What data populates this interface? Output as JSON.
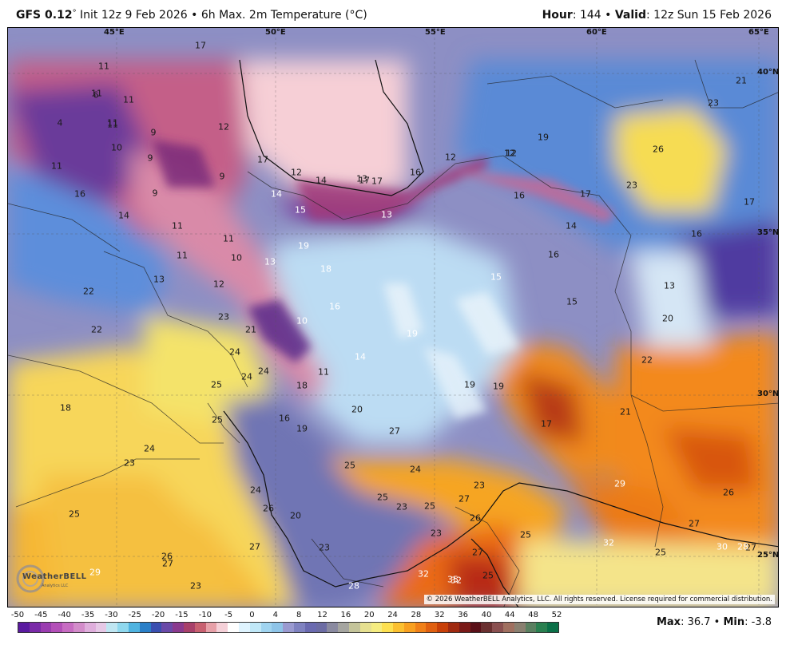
{
  "header": {
    "model": "GFS 0.12",
    "deg": "°",
    "init": " Init 12z 9 Feb 2026 • 6h Max. 2m Temperature (°C)",
    "hour_label": "Hour",
    "hour_value": ": 144 • ",
    "valid_label": "Valid",
    "valid_value": ": 12z Sun 15 Feb 2026"
  },
  "coords": {
    "lon": [
      "45°E",
      "50°E",
      "55°E",
      "60°E",
      "65°E"
    ],
    "lat": [
      "40°N",
      "35°N",
      "30°N",
      "25°N"
    ]
  },
  "labels": [
    "17",
    "11",
    "11",
    "11",
    "6",
    "11",
    "4",
    "11",
    "9",
    "10",
    "9",
    "12",
    "11",
    "17",
    "16",
    "9",
    "14",
    "9",
    "14",
    "17",
    "12",
    "14",
    "13",
    "17",
    "16",
    "12",
    "12",
    "19",
    "23",
    "26",
    "21",
    "23",
    "16",
    "17",
    "15",
    "13",
    "14",
    "11",
    "11",
    "13",
    "10",
    "12",
    "11",
    "19",
    "18",
    "16",
    "13",
    "16",
    "19",
    "15",
    "15",
    "16",
    "13",
    "17",
    "35°N",
    "20",
    "12",
    "22",
    "22",
    "23",
    "21",
    "10",
    "24",
    "24",
    "24",
    "14",
    "25",
    "11",
    "18",
    "19",
    "19",
    "18",
    "22",
    "25",
    "16",
    "19",
    "20",
    "17",
    "27",
    "21",
    "23",
    "25",
    "24",
    "24",
    "24",
    "23",
    "25",
    "26",
    "29",
    "26",
    "25",
    "20",
    "23",
    "23",
    "25",
    "27",
    "27",
    "23",
    "25",
    "26",
    "25",
    "27",
    "30",
    "27",
    "27",
    "26",
    "29",
    "32",
    "27",
    "32",
    "35",
    "25",
    "28",
    "23",
    "28",
    "32"
  ],
  "copyright": "© 2026 WeatherBELL Analytics, LLC. All rights reserved. License required for commercial distribution.",
  "logo": {
    "name": "WeatherBELL",
    "sub": "Analytics LLC"
  },
  "legend": {
    "ticks": [
      "-50",
      "-45",
      "-40",
      "-35",
      "-30",
      "-25",
      "-20",
      "-15",
      "-10",
      "-5",
      "0",
      "4",
      "8",
      "12",
      "16",
      "20",
      "24",
      "28",
      "32",
      "36",
      "40",
      "44",
      "48",
      "52"
    ],
    "colors": [
      "#5a1aa0",
      "#7a2aa8",
      "#9a3cb0",
      "#b34fb8",
      "#c76cc2",
      "#d38cca",
      "#dfaedc",
      "#e6c8e6",
      "#bfe6f2",
      "#8fd8ee",
      "#4fb3e0",
      "#2a7fc8",
      "#3a4fb0",
      "#6a4aa8",
      "#8a3a8e",
      "#a8406a",
      "#c86070",
      "#e7a0a8",
      "#f5d0d8",
      "#ffffff",
      "#dff4ff",
      "#c0e8f8",
      "#a0d4f0",
      "#8ec4e8",
      "#9a9ad0",
      "#7f82c0",
      "#6a6ab0",
      "#6c6ca4",
      "#8a8aa0",
      "#a5a5a0",
      "#c4c49a",
      "#e6e090",
      "#f5ec80",
      "#fde050",
      "#fbc030",
      "#f8a020",
      "#f08018",
      "#e06010",
      "#c84008",
      "#a02a10",
      "#7a1a18",
      "#5a1018",
      "#6a3030",
      "#8a5050",
      "#a07060",
      "#8a8070",
      "#5a8060",
      "#2a8050",
      "#0a7048"
    ]
  },
  "stats": {
    "max_label": "Max",
    "max_value": ": 36.7 • ",
    "min_label": "Min",
    "min_value": ": -3.8"
  },
  "colors": {
    "accent": "#111111"
  }
}
